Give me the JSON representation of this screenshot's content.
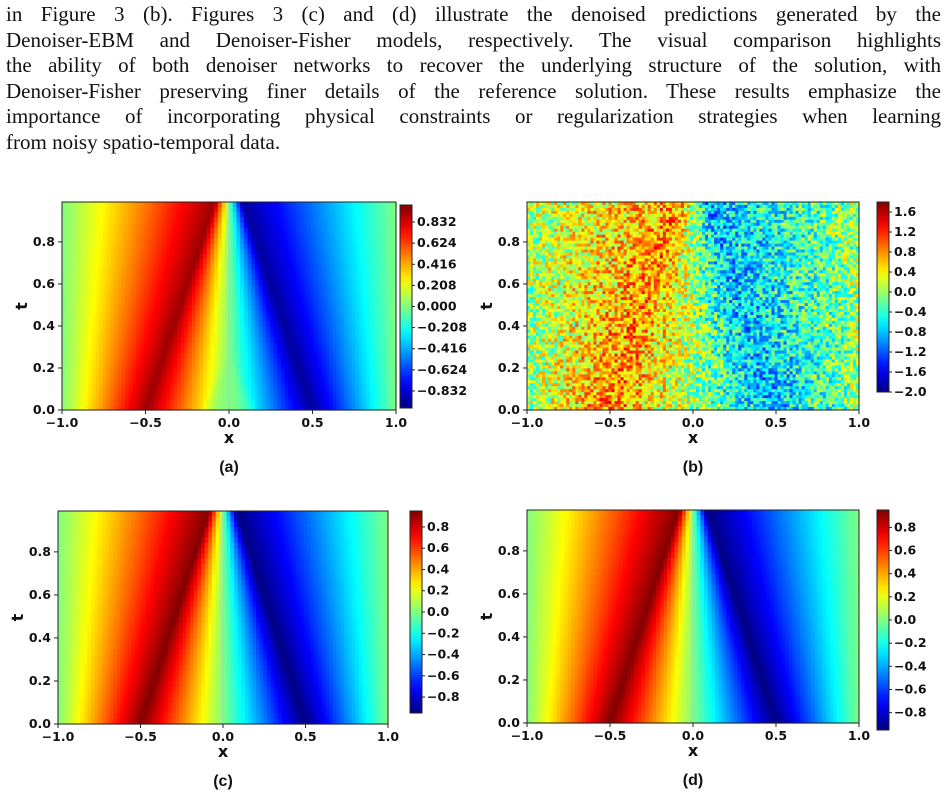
{
  "paragraph": {
    "lines": [
      "in Figure 3 (b). Figures 3 (c) and (d) illustrate the denoised predictions generated by the",
      "Denoiser-EBM and Denoiser-Fisher models, respectively. The visual comparison highlights",
      "the ability of both denoiser networks to recover the underlying structure of the solution, with",
      "Denoiser-Fisher preserving finer details of the reference solution. These results emphasize the",
      "importance of incorporating physical constraints or regularization strategies when learning",
      "from noisy spatio-temporal data."
    ]
  },
  "colormap": "jet",
  "panels": [
    {
      "caption": "(a)",
      "xlabel": "x",
      "ylabel": "t",
      "x_ticks": [
        "−1.0",
        "−0.5",
        "0.0",
        "0.5",
        "1.0"
      ],
      "y_ticks": [
        "0.0",
        "0.2",
        "0.4",
        "0.6",
        "0.8"
      ],
      "colorbar_ticks": [
        "0.832",
        "0.624",
        "0.416",
        "0.208",
        "0.000",
        "−0.208",
        "−0.416",
        "−0.624",
        "−0.832"
      ],
      "colorbar_range": [
        -1.0,
        1.0
      ],
      "variant": "reference"
    },
    {
      "caption": "(b)",
      "xlabel": "x",
      "ylabel": "t",
      "x_ticks": [
        "−1.0",
        "−0.5",
        "0.0",
        "0.5",
        "1.0"
      ],
      "y_ticks": [
        "0.0",
        "0.2",
        "0.4",
        "0.6",
        "0.8"
      ],
      "colorbar_ticks": [
        "1.6",
        "1.2",
        "0.8",
        "0.4",
        "0.0",
        "−0.4",
        "−0.8",
        "−1.2",
        "−1.6",
        "−2.0"
      ],
      "colorbar_range": [
        -2.0,
        1.8
      ],
      "variant": "noisy"
    },
    {
      "caption": "(c)",
      "xlabel": "x",
      "ylabel": "t",
      "x_ticks": [
        "−1.0",
        "−0.5",
        "0.0",
        "0.5",
        "1.0"
      ],
      "y_ticks": [
        "0.0",
        "0.2",
        "0.4",
        "0.6",
        "0.8"
      ],
      "colorbar_ticks": [
        "0.8",
        "0.6",
        "0.4",
        "0.2",
        "0.0",
        "−0.2",
        "−0.4",
        "−0.6",
        "−0.8"
      ],
      "colorbar_range": [
        -0.95,
        0.95
      ],
      "variant": "denoised"
    },
    {
      "caption": "(d)",
      "xlabel": "x",
      "ylabel": "t",
      "x_ticks": [
        "−1.0",
        "−0.5",
        "0.0",
        "0.5",
        "1.0"
      ],
      "y_ticks": [
        "0.0",
        "0.2",
        "0.4",
        "0.6",
        "0.8"
      ],
      "colorbar_ticks": [
        "0.8",
        "0.6",
        "0.4",
        "0.2",
        "0.0",
        "−0.2",
        "−0.4",
        "−0.6",
        "−0.8"
      ],
      "colorbar_range": [
        -0.95,
        0.95
      ],
      "variant": "denoised"
    }
  ]
}
